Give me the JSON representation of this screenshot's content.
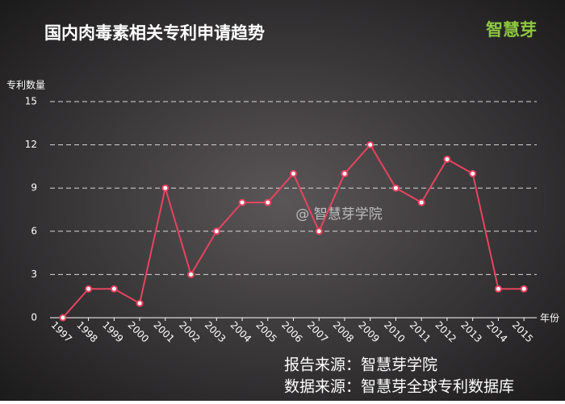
{
  "chart_data": {
    "type": "line",
    "title": "国内肉毒素相关专利申请趋势",
    "logo": "智慧芽",
    "watermark": "@ 智慧芽学院",
    "y_label": "专利数量",
    "x_label": "年份",
    "sources": [
      "报告来源：智慧芽学院",
      "数据来源：智慧芽全球专利数据库"
    ],
    "categories": [
      "1997",
      "1998",
      "1999",
      "2000",
      "2001",
      "2002",
      "2003",
      "2004",
      "2005",
      "2006",
      "2007",
      "2008",
      "2009",
      "2010",
      "2011",
      "2012",
      "2013",
      "2014",
      "2015"
    ],
    "series": [
      {
        "name": "专利数量",
        "color": "#e8435f",
        "values": [
          0,
          2,
          2,
          1,
          9,
          3,
          6,
          8,
          8,
          10,
          6,
          10,
          12,
          9,
          8,
          11,
          10,
          2,
          2
        ]
      }
    ],
    "ylim": [
      0,
      15
    ],
    "yticks": [
      0,
      3,
      6,
      9,
      12,
      15
    ],
    "grid": true
  }
}
